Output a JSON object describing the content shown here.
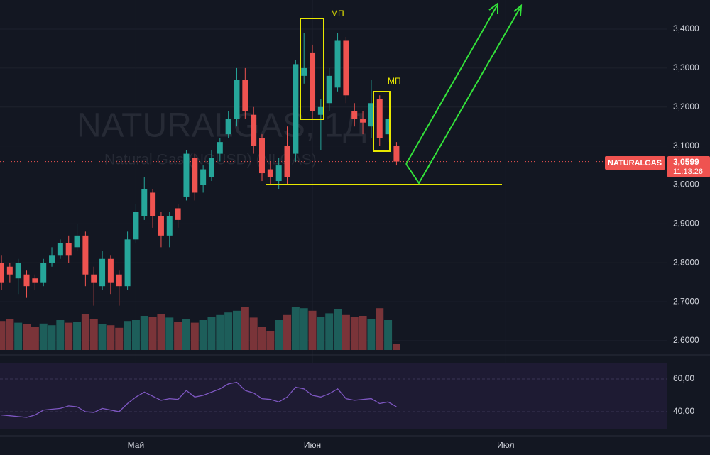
{
  "chart_data": {
    "type": "candlestick",
    "title": "NATURALGAS, 1Д",
    "subtitle": "Natural Gas (NGUSD) (NLGAS)",
    "symbol": "NATURALGAS",
    "last_price": {
      "value": 3.0599,
      "label": "3,0599"
    },
    "countdown": "11:13:26",
    "annotations": [
      "МП",
      "МП"
    ],
    "up_color": "#26a69a",
    "down_color": "#ef5350",
    "ylim": [
      2.5727,
      3.4747
    ],
    "yticks": [
      {
        "value": 3.4,
        "label": "3,4000"
      },
      {
        "value": 3.3,
        "label": "3,3000"
      },
      {
        "value": 3.2,
        "label": "3,2000"
      },
      {
        "value": 3.1,
        "label": "3,1000"
      },
      {
        "value": 3.0,
        "label": "3,0000"
      },
      {
        "value": 2.9,
        "label": "2,9000"
      },
      {
        "value": 2.8,
        "label": "2,8000"
      },
      {
        "value": 2.7,
        "label": "2,7000"
      },
      {
        "value": 2.6,
        "label": "2,6000"
      }
    ],
    "xlim": [
      0,
      79
    ],
    "xticks": [
      {
        "value": 16,
        "label": "Май"
      },
      {
        "value": 37,
        "label": "Июн"
      },
      {
        "value": 60,
        "label": "Июл"
      }
    ],
    "open": [
      2.8,
      2.79,
      2.76,
      2.77,
      2.76,
      2.75,
      2.8,
      2.82,
      2.85,
      2.84,
      2.87,
      2.77,
      2.74,
      2.81,
      2.77,
      2.74,
      2.86,
      2.92,
      2.98,
      2.92,
      2.87,
      2.94,
      2.97,
      3.07,
      3.0,
      3.02,
      3.08,
      3.13,
      3.17,
      3.27,
      3.18,
      3.12,
      3.04,
      3.01,
      3.1,
      3.08,
      3.28,
      3.34,
      3.18,
      3.21,
      3.25,
      3.37,
      3.19,
      3.17,
      3.15,
      3.22,
      3.13,
      3.1
    ],
    "high": [
      2.82,
      2.8,
      2.81,
      2.78,
      2.77,
      2.81,
      2.84,
      2.86,
      2.87,
      2.9,
      2.88,
      2.79,
      2.83,
      2.82,
      2.78,
      2.88,
      2.95,
      3.02,
      2.99,
      2.93,
      2.93,
      2.95,
      3.09,
      3.08,
      3.05,
      3.09,
      3.12,
      3.19,
      3.3,
      3.3,
      3.2,
      3.13,
      3.06,
      3.07,
      3.15,
      3.32,
      3.39,
      3.36,
      3.22,
      3.3,
      3.39,
      3.38,
      3.21,
      3.19,
      3.27,
      3.23,
      3.18,
      3.11
    ],
    "low": [
      2.73,
      2.75,
      2.72,
      2.71,
      2.73,
      2.74,
      2.79,
      2.81,
      2.8,
      2.83,
      2.74,
      2.69,
      2.73,
      2.72,
      2.69,
      2.73,
      2.85,
      2.91,
      2.89,
      2.84,
      2.84,
      2.89,
      2.96,
      2.96,
      2.98,
      3.01,
      3.06,
      3.12,
      3.15,
      3.17,
      3.08,
      3.01,
      3.0,
      2.99,
      3.0,
      3.06,
      3.26,
      3.17,
      3.09,
      3.19,
      3.24,
      3.21,
      3.15,
      3.13,
      3.12,
      3.1,
      3.11,
      3.05
    ],
    "close": [
      2.75,
      2.77,
      2.8,
      2.74,
      2.75,
      2.8,
      2.82,
      2.85,
      2.82,
      2.87,
      2.77,
      2.75,
      2.81,
      2.75,
      2.74,
      2.86,
      2.93,
      2.99,
      2.92,
      2.87,
      2.92,
      2.91,
      3.08,
      2.98,
      3.04,
      3.07,
      3.11,
      3.17,
      3.27,
      3.19,
      3.1,
      3.03,
      3.02,
      3.05,
      3.02,
      3.31,
      3.3,
      3.19,
      3.2,
      3.28,
      3.37,
      3.23,
      3.17,
      3.16,
      3.21,
      3.12,
      3.17,
      3.06
    ],
    "volume": [
      68,
      72,
      64,
      60,
      55,
      62,
      58,
      70,
      64,
      66,
      85,
      72,
      60,
      58,
      52,
      68,
      70,
      80,
      78,
      84,
      76,
      66,
      72,
      64,
      70,
      78,
      82,
      88,
      92,
      100,
      76,
      55,
      45,
      70,
      82,
      100,
      98,
      92,
      78,
      86,
      96,
      82,
      78,
      80,
      72,
      98,
      70,
      14
    ],
    "volume_ylim": [
      0,
      100
    ],
    "rsi": {
      "color": "#7e57c2",
      "values": [
        38,
        37.5,
        37,
        36.5,
        38,
        41,
        41.5,
        42,
        43.5,
        43,
        40,
        39.5,
        42,
        41,
        40,
        45,
        49,
        52,
        49.5,
        47,
        48,
        47.5,
        53,
        49,
        50,
        52,
        54,
        57,
        58,
        53,
        51.5,
        48,
        47.5,
        46,
        49,
        55,
        54,
        50,
        49,
        51,
        54,
        48,
        47,
        47.5,
        48,
        45,
        46,
        43
      ],
      "ylim": [
        29.1,
        69.6
      ],
      "yticks": [
        {
          "value": 60,
          "label": "60,00"
        },
        {
          "value": 40,
          "label": "40,00"
        }
      ]
    }
  }
}
